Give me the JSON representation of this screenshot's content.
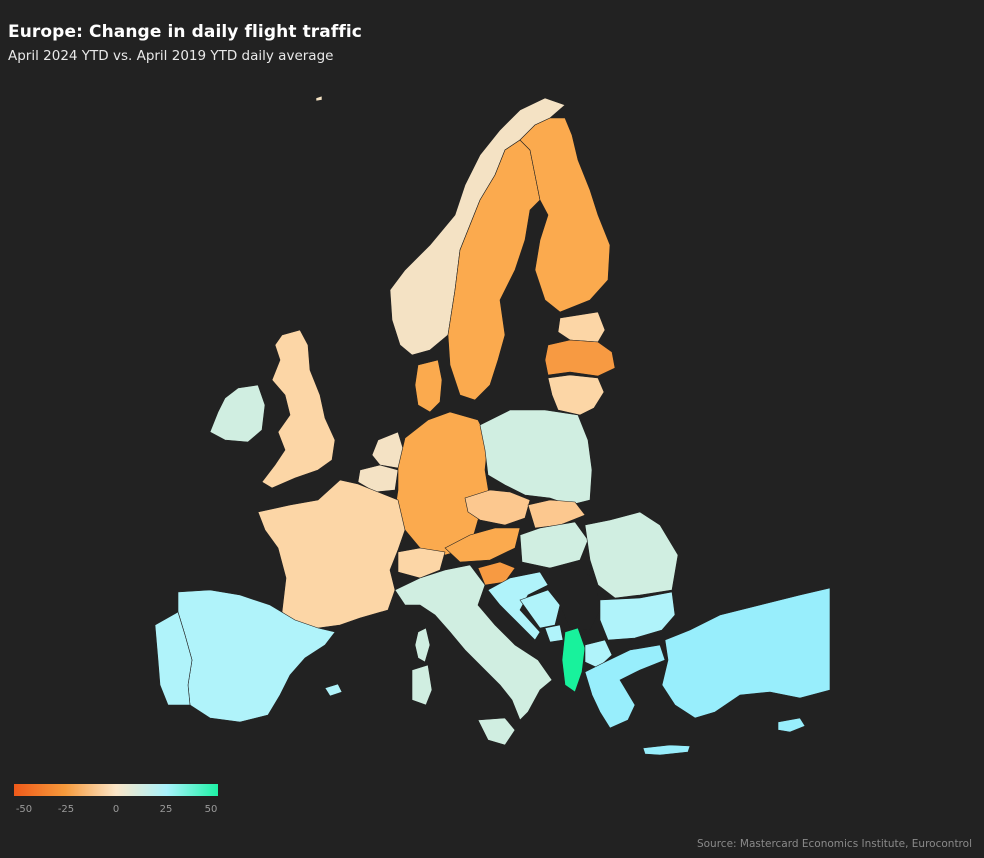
{
  "title": "Europe: Change in daily flight traffic",
  "subtitle": "April 2024 YTD vs. April 2019 YTD daily average",
  "source": "Source: Mastercard Economics Institute, Eurocontrol",
  "legend": {
    "ticks": [
      "-50",
      "-25",
      "0",
      "25",
      "50"
    ],
    "min": -50,
    "max": 50,
    "colors": [
      "#ef5a1a",
      "#f69a3c",
      "#fbe5c7",
      "#a8f2fc",
      "#1ef2a6"
    ]
  },
  "colors": {
    "background": "#222222",
    "dark_orange": "#f79a42",
    "orange": "#fbaa4e",
    "light_orange": "#fcc88f",
    "peach": "#fcd6a6",
    "beige": "#f4e2c4",
    "mint": "#d0eee1",
    "light_cyan": "#b0f3fa",
    "cyan": "#98eefc",
    "green": "#18f29c"
  }
}
